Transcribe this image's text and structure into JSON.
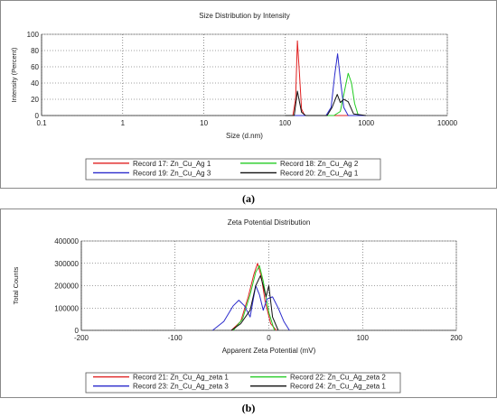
{
  "chart_data": [
    {
      "type": "line",
      "title": "Size Distribution by Intensity",
      "xlabel": "Size (d.nm)",
      "ylabel": "Intensity (Percent)",
      "xscale": "log",
      "xlim": [
        0.1,
        10000
      ],
      "ylim": [
        0,
        100
      ],
      "xticks": [
        0.1,
        1,
        10,
        100,
        1000,
        10000
      ],
      "xtick_labels": [
        "0.1",
        "1",
        "10",
        "100",
        "1000",
        "10000"
      ],
      "yticks": [
        0,
        20,
        40,
        60,
        80,
        100
      ],
      "ytick_labels": [
        "0",
        "20",
        "40",
        "60",
        "80",
        "100"
      ],
      "grid": true,
      "legend_position": "bottom",
      "series": [
        {
          "name": "Record 17: Zn_Cu_Ag 1",
          "color": "#e02020",
          "x": [
            100,
            125,
            135,
            142,
            150,
            160,
            175,
            200,
            1000
          ],
          "y": [
            0,
            0,
            20,
            92,
            55,
            8,
            0,
            0,
            0
          ]
        },
        {
          "name": "Record 18: Zn_Cu_Ag 2",
          "color": "#22cc22",
          "x": [
            100,
            400,
            480,
            540,
            600,
            660,
            720,
            800,
            1000
          ],
          "y": [
            0,
            0,
            5,
            30,
            52,
            40,
            15,
            0,
            0
          ]
        },
        {
          "name": "Record 19: Zn_Cu_Ag 3",
          "color": "#2a2acc",
          "x": [
            100,
            320,
            370,
            410,
            445,
            480,
            530,
            600,
            1000
          ],
          "y": [
            0,
            0,
            10,
            50,
            76,
            45,
            10,
            0,
            0
          ]
        },
        {
          "name": "Record 20: Zn_Cu_Ag 1",
          "color": "#111111",
          "x": [
            100,
            130,
            142,
            150,
            160,
            180,
            330,
            380,
            440,
            480,
            530,
            600,
            700,
            1000
          ],
          "y": [
            0,
            0,
            30,
            18,
            4,
            0,
            0,
            10,
            26,
            16,
            20,
            17,
            2,
            0
          ]
        }
      ]
    },
    {
      "type": "line",
      "title": "Zeta Potential Distribution",
      "xlabel": "Apparent Zeta Potential (mV)",
      "ylabel": "Total Counts",
      "xlim": [
        -200,
        200
      ],
      "ylim": [
        0,
        400000
      ],
      "xticks": [
        -200,
        -100,
        0,
        100,
        200
      ],
      "xtick_labels": [
        "-200",
        "-100",
        "0",
        "100",
        "200"
      ],
      "yticks": [
        0,
        100000,
        200000,
        300000,
        400000
      ],
      "ytick_labels": [
        "0",
        "100000",
        "200000",
        "300000",
        "400000"
      ],
      "grid": true,
      "legend_position": "bottom",
      "series": [
        {
          "name": "Record 21: Zn_Cu_Ag_zeta 1",
          "color": "#e02020",
          "x": [
            -40,
            -30,
            -22,
            -16,
            -12,
            -8,
            -4,
            2,
            8
          ],
          "y": [
            0,
            40000,
            150000,
            250000,
            300000,
            240000,
            130000,
            30000,
            0
          ]
        },
        {
          "name": "Record 22: Zn_Cu_Ag_zeta 2",
          "color": "#22cc22",
          "x": [
            -38,
            -28,
            -20,
            -14,
            -10,
            -6,
            0,
            6
          ],
          "y": [
            0,
            50000,
            160000,
            260000,
            290000,
            220000,
            80000,
            0
          ]
        },
        {
          "name": "Record 23: Zn_Cu_Ag_zeta 3",
          "color": "#2a2acc",
          "x": [
            -60,
            -48,
            -38,
            -32,
            -26,
            -20,
            -14,
            -10,
            -6,
            -2,
            4,
            10,
            16,
            22
          ],
          "y": [
            0,
            40000,
            110000,
            135000,
            110000,
            60000,
            200000,
            160000,
            90000,
            140000,
            150000,
            100000,
            40000,
            0
          ]
        },
        {
          "name": "Record 24: Zn_Cu_Ag_zeta 1",
          "color": "#111111",
          "x": [
            -40,
            -30,
            -20,
            -14,
            -9,
            -6,
            -3,
            0,
            4,
            10
          ],
          "y": [
            0,
            30000,
            90000,
            200000,
            245000,
            200000,
            150000,
            200000,
            60000,
            0
          ]
        }
      ]
    }
  ],
  "captions": {
    "a": "(a)",
    "b": "(b)"
  }
}
